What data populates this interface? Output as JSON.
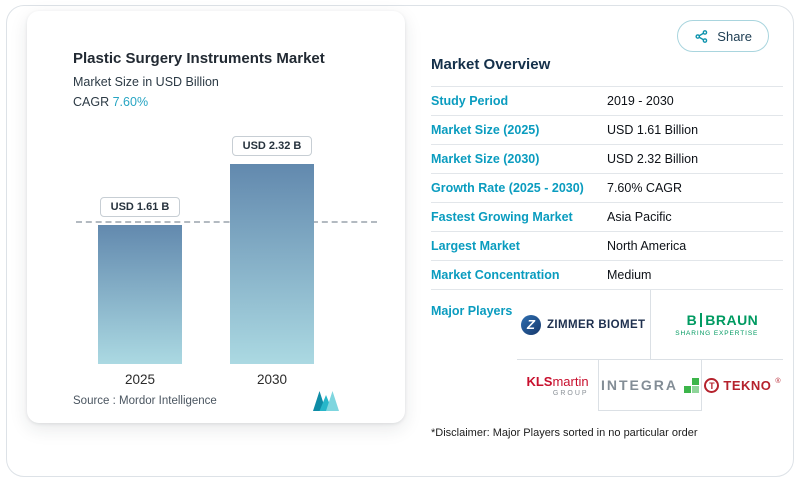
{
  "header": {
    "share_label": "Share"
  },
  "chart_card": {
    "title": "Plastic Surgery Instruments Market",
    "subtitle": "Market Size in USD Billion",
    "cagr_label": "CAGR",
    "cagr_value": "7.60%",
    "source_label": "Source :",
    "source_name": "Mordor Intelligence"
  },
  "chart_data": {
    "type": "bar",
    "categories": [
      "2025",
      "2030"
    ],
    "values": [
      1.61,
      2.32
    ],
    "bar_labels": [
      "USD 1.61 B",
      "USD 2.32 B"
    ],
    "title": "Plastic Surgery Instruments Market",
    "xlabel": "",
    "ylabel": "Market Size in USD Billion",
    "ylim": [
      0,
      2.32
    ],
    "reference_line": 1.61,
    "bar_color_top": "#6289ae",
    "bar_color_bottom": "#abd9e2",
    "grid": false,
    "legend": false
  },
  "overview": {
    "title": "Market Overview",
    "rows": [
      {
        "label": "Study Period",
        "value": "2019 - 2030"
      },
      {
        "label": "Market Size (2025)",
        "value": "USD 1.61 Billion"
      },
      {
        "label": "Market Size (2030)",
        "value": "USD 2.32 Billion"
      },
      {
        "label": "Growth Rate (2025 - 2030)",
        "value": "7.60% CAGR"
      },
      {
        "label": "Fastest Growing Market",
        "value": "Asia Pacific"
      },
      {
        "label": "Largest Market",
        "value": "North America"
      },
      {
        "label": "Market Concentration",
        "value": "Medium"
      }
    ],
    "major_players_label": "Major Players",
    "players": {
      "zimmer_biomet": {
        "name": "ZIMMER BIOMET"
      },
      "bbraun": {
        "name": "B",
        "name2": "BRAUN",
        "tagline": "SHARING EXPERTISE"
      },
      "kls_martin": {
        "name": "KLS",
        "name2": "martin",
        "tagline": "GROUP"
      },
      "integra": {
        "name": "INTEGRA"
      },
      "tekno": {
        "name": "TEKNO",
        "mark": "®"
      }
    },
    "disclaimer": "*Disclaimer: Major Players sorted in no particular order"
  },
  "colors": {
    "accent_teal": "#0a9cbf",
    "title_dark": "#14304a",
    "bar_gradient_top": "#6289ae",
    "bar_gradient_bottom": "#abd9e2",
    "bbraun_green": "#009a61",
    "kls_red": "#c8102e",
    "tekno_red": "#b5222d",
    "zimmer_navy": "#1d2f4e",
    "integra_grey": "#838d96",
    "integra_green": "#3cb54a"
  }
}
